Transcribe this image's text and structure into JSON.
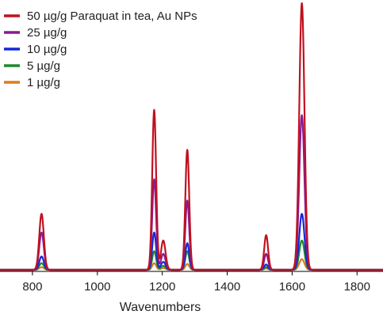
{
  "chart_data": {
    "type": "line",
    "title": "",
    "xlabel": "Wavenumbers",
    "ylabel": "",
    "xlim": [
      700,
      1880
    ],
    "ylim": [
      0,
      100
    ],
    "grid": false,
    "legend_position": "top-left",
    "x_ticks": [
      800,
      1000,
      1200,
      1400,
      1600,
      1800
    ],
    "x_tick_labels": [
      "800",
      "1000",
      "1200",
      "1400",
      "1600",
      "1800"
    ],
    "peaks_cm1": [
      828,
      1175,
      1203,
      1277,
      1520,
      1630
    ],
    "series": [
      {
        "name": "50 µg/g Paraquat in tea, Au NPs",
        "color": "#c0111f",
        "peak_heights": [
          21,
          60,
          11,
          45,
          13,
          100
        ]
      },
      {
        "name": "25 µg/g",
        "color": "#8b1a92",
        "peak_heights": [
          14,
          34,
          6,
          26,
          6,
          58
        ]
      },
      {
        "name": "10 µg/g",
        "color": "#1428d8",
        "peak_heights": [
          5,
          14,
          3,
          10,
          2,
          21
        ]
      },
      {
        "name": "5 µg/g",
        "color": "#1c8a2a",
        "peak_heights": [
          2.5,
          7,
          1.5,
          7,
          1,
          11
        ]
      },
      {
        "name": "1 µg/g",
        "color": "#e07a1e",
        "peak_heights": [
          1,
          2.5,
          0.7,
          2.2,
          0.5,
          4
        ]
      }
    ]
  }
}
